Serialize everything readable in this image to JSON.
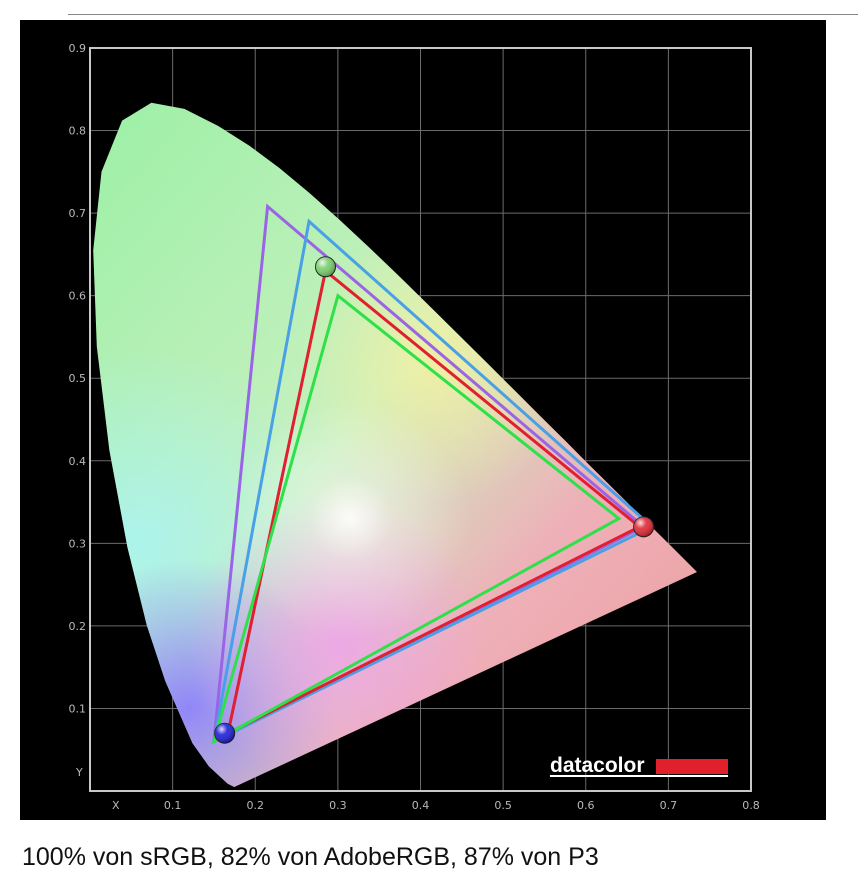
{
  "caption": "100% von sRGB, 82% von AdobeRGB, 87% von P3",
  "brand": {
    "text": "datacolor",
    "bar_color": "#e0202a"
  },
  "colors": {
    "background": "#000000",
    "frame": "#c8c8c8",
    "grid": "#6b6b6b",
    "tick_text": "#b9b9b9"
  },
  "chart_data": {
    "type": "scatter",
    "x_label_marker": "X",
    "y_label_marker": "Y",
    "xlim": [
      0,
      0.8
    ],
    "ylim": [
      0,
      0.9
    ],
    "x_ticks": [
      "0.1",
      "0.2",
      "0.3",
      "0.4",
      "0.5",
      "0.6",
      "0.7",
      "0.8"
    ],
    "y_ticks": [
      "0.1",
      "0.2",
      "0.3",
      "0.4",
      "0.5",
      "0.6",
      "0.7",
      "0.8",
      "0.9"
    ],
    "grid": true,
    "gamut_triangles": [
      {
        "color": "#9a64e6",
        "points": [
          [
            0.215,
            0.708
          ],
          [
            0.67,
            0.32
          ],
          [
            0.15,
            0.06
          ]
        ]
      },
      {
        "color": "#4aa0e6",
        "points": [
          [
            0.265,
            0.69
          ],
          [
            0.68,
            0.32
          ],
          [
            0.15,
            0.06
          ]
        ]
      },
      {
        "color": "#e02030",
        "points": [
          [
            0.285,
            0.63
          ],
          [
            0.665,
            0.32
          ],
          [
            0.167,
            0.07
          ]
        ]
      },
      {
        "color": "#2ee04a",
        "points": [
          [
            0.3,
            0.6
          ],
          [
            0.64,
            0.33
          ],
          [
            0.15,
            0.06
          ]
        ]
      }
    ],
    "measured_primaries": [
      {
        "color": "#e02a36",
        "x": 0.67,
        "y": 0.32
      },
      {
        "color": "#7ad06e",
        "x": 0.285,
        "y": 0.635
      },
      {
        "color": "#2020d8",
        "x": 0.163,
        "y": 0.07
      }
    ],
    "spectral_locus": [
      [
        0.175,
        0.005
      ],
      [
        0.1741,
        0.005
      ],
      [
        0.1666,
        0.0089
      ],
      [
        0.144,
        0.0297
      ],
      [
        0.1241,
        0.0578
      ],
      [
        0.0913,
        0.1327
      ],
      [
        0.0687,
        0.2007
      ],
      [
        0.0454,
        0.295
      ],
      [
        0.0235,
        0.4127
      ],
      [
        0.0082,
        0.5384
      ],
      [
        0.0039,
        0.6548
      ],
      [
        0.0139,
        0.7502
      ],
      [
        0.0389,
        0.812
      ],
      [
        0.0743,
        0.8338
      ],
      [
        0.1142,
        0.8262
      ],
      [
        0.1547,
        0.8059
      ],
      [
        0.1929,
        0.7816
      ],
      [
        0.2296,
        0.7543
      ],
      [
        0.2658,
        0.7243
      ],
      [
        0.3016,
        0.6923
      ],
      [
        0.3373,
        0.6589
      ],
      [
        0.3731,
        0.6245
      ],
      [
        0.4087,
        0.5896
      ],
      [
        0.4441,
        0.5547
      ],
      [
        0.4788,
        0.5202
      ],
      [
        0.5125,
        0.4866
      ],
      [
        0.5448,
        0.4544
      ],
      [
        0.5752,
        0.4242
      ],
      [
        0.6029,
        0.3965
      ],
      [
        0.627,
        0.3725
      ],
      [
        0.6482,
        0.3514
      ],
      [
        0.6658,
        0.334
      ],
      [
        0.6801,
        0.3197
      ],
      [
        0.6915,
        0.3083
      ],
      [
        0.7006,
        0.2993
      ],
      [
        0.714,
        0.286
      ],
      [
        0.7347,
        0.2653
      ]
    ]
  }
}
